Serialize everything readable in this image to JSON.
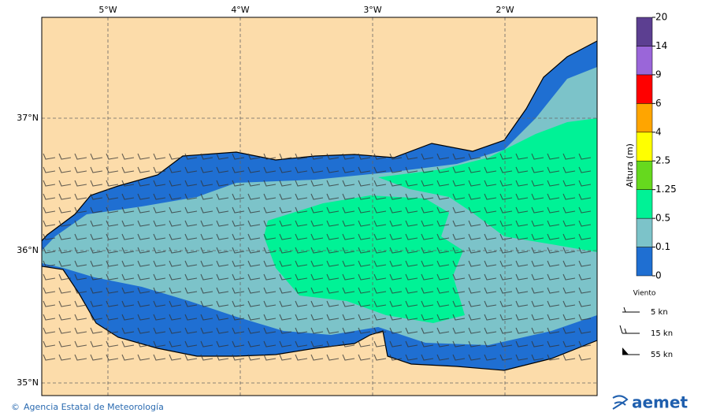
{
  "map": {
    "lon_labels": [
      "5°W",
      "4°W",
      "3°W",
      "2°W"
    ],
    "lat_labels": [
      "37°N",
      "36°N",
      "35°N"
    ]
  },
  "legend": {
    "title": "Altura (m)",
    "levels": [
      "0",
      "0.1",
      "0.5",
      "1.25",
      "2.5",
      "4",
      "6",
      "9",
      "14",
      "20"
    ],
    "colors": [
      "#1f6fd2",
      "#7cc3c9",
      "#00f296",
      "#66d91e",
      "#ffff00",
      "#ffa500",
      "#ff0000",
      "#9a66d9",
      "#5c3f91"
    ]
  },
  "wind": {
    "title": "Viento",
    "items": [
      "5 kn",
      "15 kn",
      "55 kn"
    ]
  },
  "footer": {
    "credit": "Agencia Estatal de Meteorología",
    "logo": "aemet"
  }
}
